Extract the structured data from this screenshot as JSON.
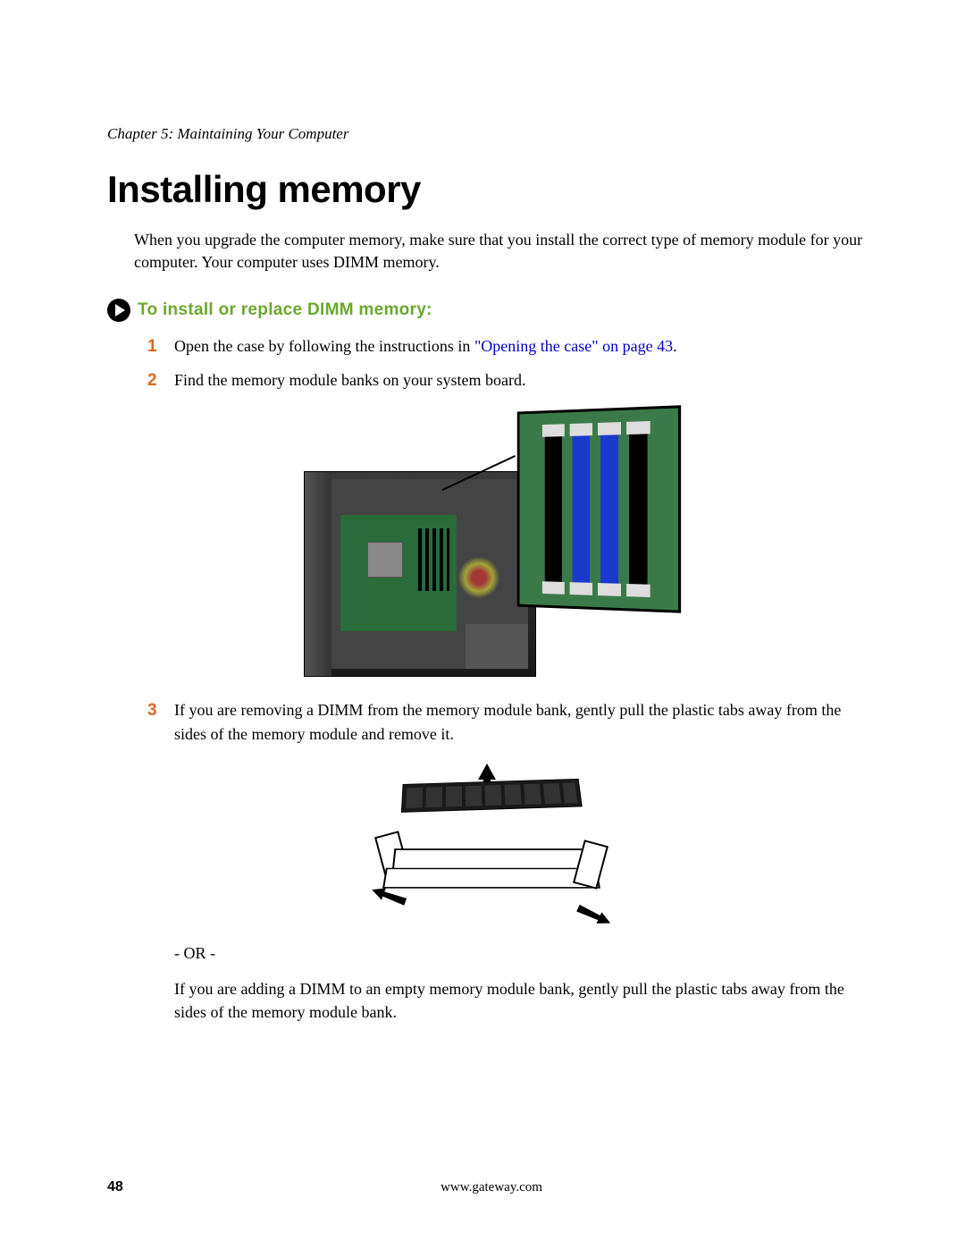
{
  "chapter_header": "Chapter 5: Maintaining Your Computer",
  "title": "Installing memory",
  "intro": "When you upgrade the computer memory, make sure that you install the correct type of memory module for your computer. Your computer uses DIMM memory.",
  "subsection": {
    "title": "To install or replace DIMM memory:",
    "title_color": "#6aa82e"
  },
  "steps": {
    "step1": {
      "num": "1",
      "num_color": "#d9691f",
      "text_before_link": "Open the case by following the instructions in ",
      "link_text": "\"Opening the case\" on page 43",
      "text_after_link": "."
    },
    "step2": {
      "num": "2",
      "num_color": "#d9691f",
      "text": "Find the memory module banks on your system board."
    },
    "step3": {
      "num": "3",
      "num_color": "#d9691f",
      "text": "If you are removing a DIMM from the memory module bank, gently pull the plastic tabs away from the sides of the memory module and remove it."
    }
  },
  "or_text": "- OR -",
  "continuation": "If you are adding a DIMM to an empty memory module bank, gently pull the plastic tabs away from the sides of the memory module bank.",
  "footer": {
    "page_num": "48",
    "url": "www.gateway.com"
  },
  "colors": {
    "step_number": "#d9691f",
    "section_heading": "#6aa82e",
    "link": "#0000cc",
    "body_text": "#000000",
    "background": "#ffffff"
  }
}
